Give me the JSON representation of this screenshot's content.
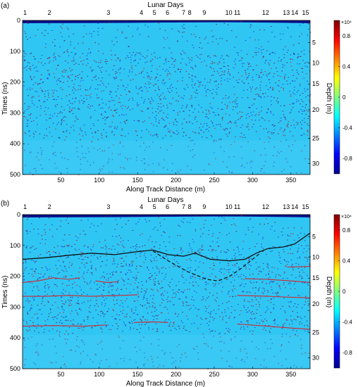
{
  "chart_data": [
    {
      "type": "heatmap",
      "panel_label": "(a)",
      "top_title": "Lunar Days",
      "lunar_day_labels": [
        "1",
        "2",
        "3",
        "4",
        "5",
        "6",
        "7",
        "8",
        "9",
        "10",
        "11",
        "12",
        "13",
        "14",
        "15"
      ],
      "lunar_day_x": [
        1,
        35,
        112,
        155,
        172,
        189,
        210,
        218,
        237,
        269,
        280,
        317,
        344,
        355,
        369
      ],
      "xlabel": "Along Track Distance (m)",
      "ylabel": "Times (ns)",
      "ylabel_right": "Depth (m)",
      "xlim": [
        0,
        375
      ],
      "ylim": [
        0,
        500
      ],
      "x_ticks": [
        50,
        100,
        150,
        200,
        250,
        300,
        350
      ],
      "y_ticks": [
        0,
        100,
        200,
        300,
        400,
        500
      ],
      "depth_ticks": [
        5,
        10,
        15,
        20,
        25,
        30
      ],
      "depth_tick_times": [
        72,
        138,
        206,
        290,
        382,
        465
      ],
      "colorbar": {
        "ticks": [
          "0.8",
          "0.4",
          "0",
          "-0.4",
          "-0.8"
        ],
        "tick_values": [
          0.8,
          0.4,
          0,
          -0.4,
          -0.8
        ],
        "range": [
          -1,
          1
        ],
        "exponent": "×10⁴"
      }
    },
    {
      "type": "heatmap",
      "panel_label": "(b)",
      "top_title": "Lunar Days",
      "lunar_day_labels": [
        "1",
        "2",
        "3",
        "4",
        "5",
        "6",
        "7",
        "8",
        "9",
        "10",
        "11",
        "12",
        "13",
        "14",
        "15"
      ],
      "lunar_day_x": [
        1,
        35,
        112,
        155,
        172,
        189,
        210,
        218,
        237,
        269,
        280,
        317,
        344,
        355,
        369
      ],
      "xlabel": "Along Track Distance (m)",
      "ylabel": "Times (ns)",
      "ylabel_right": "Depth (m)",
      "xlim": [
        0,
        375
      ],
      "ylim": [
        0,
        500
      ],
      "x_ticks": [
        50,
        100,
        150,
        200,
        250,
        300,
        350
      ],
      "y_ticks": [
        0,
        100,
        200,
        300,
        400,
        500
      ],
      "depth_ticks": [
        5,
        10,
        15,
        20,
        25,
        30
      ],
      "depth_tick_times": [
        72,
        138,
        206,
        290,
        382,
        465
      ],
      "colorbar": {
        "ticks": [
          "0.8",
          "0.4",
          "0",
          "-0.4",
          "-0.8"
        ],
        "tick_values": [
          0.8,
          0.4,
          0,
          -0.4,
          -0.8
        ],
        "range": [
          -1,
          1
        ],
        "exponent": "×10⁴"
      },
      "interpretation_lines": [
        {
          "style": "black-solid",
          "points": [
            [
              0,
              145
            ],
            [
              30,
              140
            ],
            [
              60,
              132
            ],
            [
              90,
              125
            ],
            [
              120,
              130
            ],
            [
              150,
              120
            ],
            [
              170,
              115
            ],
            [
              190,
              130
            ],
            [
              210,
              135
            ],
            [
              225,
              125
            ],
            [
              245,
              145
            ],
            [
              270,
              150
            ],
            [
              290,
              145
            ],
            [
              305,
              125
            ],
            [
              320,
              110
            ],
            [
              340,
              105
            ],
            [
              355,
              95
            ],
            [
              375,
              60
            ]
          ]
        },
        {
          "style": "black-dashed",
          "points": [
            [
              170,
              118
            ],
            [
              190,
              150
            ],
            [
              215,
              185
            ],
            [
              240,
              210
            ],
            [
              255,
              215
            ],
            [
              270,
              200
            ],
            [
              285,
              175
            ],
            [
              300,
              145
            ],
            [
              310,
              125
            ]
          ]
        },
        {
          "style": "red",
          "points": [
            [
              0,
              220
            ],
            [
              20,
              215
            ],
            [
              40,
              205
            ],
            [
              60,
              210
            ],
            [
              75,
              205
            ]
          ]
        },
        {
          "style": "red",
          "points": [
            [
              95,
              215
            ],
            [
              110,
              220
            ],
            [
              125,
              218
            ]
          ]
        },
        {
          "style": "red",
          "points": [
            [
              0,
              265
            ],
            [
              30,
              265
            ],
            [
              60,
              262
            ],
            [
              90,
              265
            ],
            [
              130,
              262
            ],
            [
              150,
              260
            ]
          ]
        },
        {
          "style": "red",
          "points": [
            [
              0,
              362
            ],
            [
              40,
              360
            ],
            [
              80,
              362
            ],
            [
              110,
              358
            ]
          ]
        },
        {
          "style": "red",
          "points": [
            [
              145,
              350
            ],
            [
              170,
              348
            ],
            [
              190,
              350
            ]
          ]
        },
        {
          "style": "red",
          "points": [
            [
              290,
              208
            ],
            [
              320,
              210
            ],
            [
              350,
              215
            ],
            [
              375,
              220
            ]
          ]
        },
        {
          "style": "red",
          "points": [
            [
              345,
              170
            ],
            [
              375,
              168
            ]
          ]
        },
        {
          "style": "red",
          "points": [
            [
              280,
              262
            ],
            [
              320,
              265
            ],
            [
              350,
              268
            ],
            [
              375,
              270
            ]
          ]
        },
        {
          "style": "red",
          "points": [
            [
              280,
              355
            ],
            [
              320,
              362
            ],
            [
              350,
              368
            ],
            [
              375,
              372
            ]
          ]
        }
      ]
    }
  ]
}
